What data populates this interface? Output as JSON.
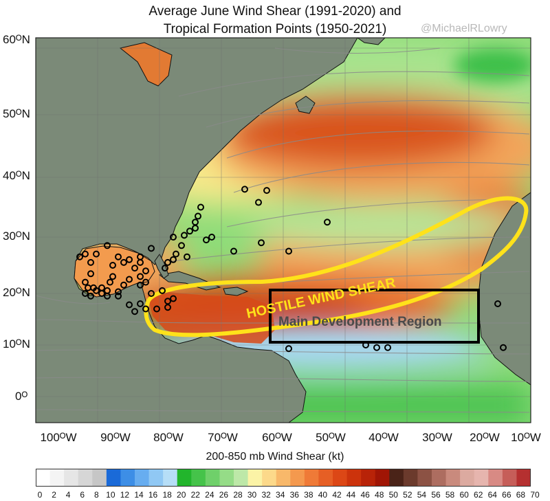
{
  "title_line1": "Average June Wind Shear (1991-2020) and",
  "title_line2": "Tropical Formation Points (1950-2021)",
  "credit": "@MichaelRLowry",
  "latitude_labels": [
    "60ᴼN",
    "50ᴼN",
    "40ᴼN",
    "30ᴼN",
    "20ᴼN",
    "10ᴼN",
    "0ᴼ"
  ],
  "longitude_labels": [
    "100ᴼW",
    "90ᴼW",
    "80ᴼW",
    "70ᴼW",
    "60ᴼW",
    "50ᴼW",
    "40ᴼW",
    "30ᴼW",
    "20ᴼW",
    "10ᴼW"
  ],
  "annotations": {
    "hostile": "HOSTILE WIND SHEAR",
    "mdr": "Main Development Region"
  },
  "colorbar": {
    "title": "200-850 mb Wind Shear (kt)",
    "ticks": [
      "0",
      "2",
      "4",
      "6",
      "8",
      "10",
      "12",
      "14",
      "16",
      "18",
      "20",
      "22",
      "24",
      "26",
      "28",
      "30",
      "32",
      "34",
      "36",
      "38",
      "40",
      "42",
      "44",
      "46",
      "48",
      "50",
      "52",
      "54",
      "56",
      "58",
      "60",
      "62",
      "64",
      "66",
      "68",
      "70"
    ]
  },
  "colors": {
    "land": "#7b8a78",
    "ocean_green": "#3cc04a",
    "ocean_light_green": "#a9e48f",
    "ocean_blue": "#a8d8ef",
    "ocean_yellow": "#f7e98a",
    "ocean_orange": "#f29a4c",
    "ocean_red": "#cf3e12",
    "highlight": "#ffe21a"
  },
  "formation_points": [
    {
      "lon": -67,
      "lat": 38
    },
    {
      "lon": -63,
      "lat": 37.8
    },
    {
      "lon": -64.5,
      "lat": 35.8
    },
    {
      "lon": -52,
      "lat": 32.5
    },
    {
      "lon": -64,
      "lat": 29
    },
    {
      "lon": -59,
      "lat": 27.5
    },
    {
      "lon": -69,
      "lat": 27.5
    },
    {
      "lon": -73,
      "lat": 30
    },
    {
      "lon": -74,
      "lat": 29.5
    },
    {
      "lon": -75,
      "lat": 35
    },
    {
      "lon": -75.5,
      "lat": 33.5
    },
    {
      "lon": -76,
      "lat": 32.5
    },
    {
      "lon": -77,
      "lat": 31
    },
    {
      "lon": -76,
      "lat": 31.5
    },
    {
      "lon": -78,
      "lat": 30.3
    },
    {
      "lon": -78.5,
      "lat": 28.5
    },
    {
      "lon": -80,
      "lat": 30
    },
    {
      "lon": -79.5,
      "lat": 27
    },
    {
      "lon": -77.5,
      "lat": 26.5
    },
    {
      "lon": -80,
      "lat": 26
    },
    {
      "lon": -81,
      "lat": 25.5
    },
    {
      "lon": -81.5,
      "lat": 24.5
    },
    {
      "lon": -84,
      "lat": 28
    },
    {
      "lon": -86,
      "lat": 26.5
    },
    {
      "lon": -86,
      "lat": 25.5
    },
    {
      "lon": -87,
      "lat": 24.5
    },
    {
      "lon": -88,
      "lat": 26
    },
    {
      "lon": -89,
      "lat": 25.5
    },
    {
      "lon": -90,
      "lat": 26.5
    },
    {
      "lon": -91,
      "lat": 25
    },
    {
      "lon": -92,
      "lat": 28.5
    },
    {
      "lon": -94,
      "lat": 27
    },
    {
      "lon": -95,
      "lat": 25.5
    },
    {
      "lon": -96,
      "lat": 27
    },
    {
      "lon": -97,
      "lat": 26.5
    },
    {
      "lon": -95,
      "lat": 23.5
    },
    {
      "lon": -96,
      "lat": 22
    },
    {
      "lon": -95.5,
      "lat": 21
    },
    {
      "lon": -94.5,
      "lat": 21
    },
    {
      "lon": -94,
      "lat": 20.5
    },
    {
      "lon": -93,
      "lat": 21
    },
    {
      "lon": -92,
      "lat": 20.5
    },
    {
      "lon": -91.5,
      "lat": 22
    },
    {
      "lon": -91,
      "lat": 23
    },
    {
      "lon": -96,
      "lat": 20
    },
    {
      "lon": -95,
      "lat": 19.5
    },
    {
      "lon": -92,
      "lat": 19.5
    },
    {
      "lon": -90,
      "lat": 19.5
    },
    {
      "lon": -89,
      "lat": 21.5
    },
    {
      "lon": -88,
      "lat": 22.5
    },
    {
      "lon": -86,
      "lat": 21.5
    },
    {
      "lon": -86,
      "lat": 23
    },
    {
      "lon": -85,
      "lat": 24
    },
    {
      "lon": -85,
      "lat": 22
    },
    {
      "lon": -84,
      "lat": 20
    },
    {
      "lon": -86,
      "lat": 18
    },
    {
      "lon": -85,
      "lat": 17
    },
    {
      "lon": -87,
      "lat": 16.5
    },
    {
      "lon": -88,
      "lat": 17.8
    },
    {
      "lon": -82,
      "lat": 20.5
    },
    {
      "lon": -81,
      "lat": 18.5
    },
    {
      "lon": -83,
      "lat": 17
    },
    {
      "lon": -81,
      "lat": 17.3
    },
    {
      "lon": -80,
      "lat": 19
    },
    {
      "lon": -90,
      "lat": 20.3
    },
    {
      "lon": -93,
      "lat": 20
    },
    {
      "lon": -45,
      "lat": 10
    },
    {
      "lon": -43,
      "lat": 9.5
    },
    {
      "lon": -41,
      "lat": 9.5
    },
    {
      "lon": -59,
      "lat": 9.3
    },
    {
      "lon": -20,
      "lat": 9.5
    },
    {
      "lon": -21,
      "lat": 18
    }
  ]
}
